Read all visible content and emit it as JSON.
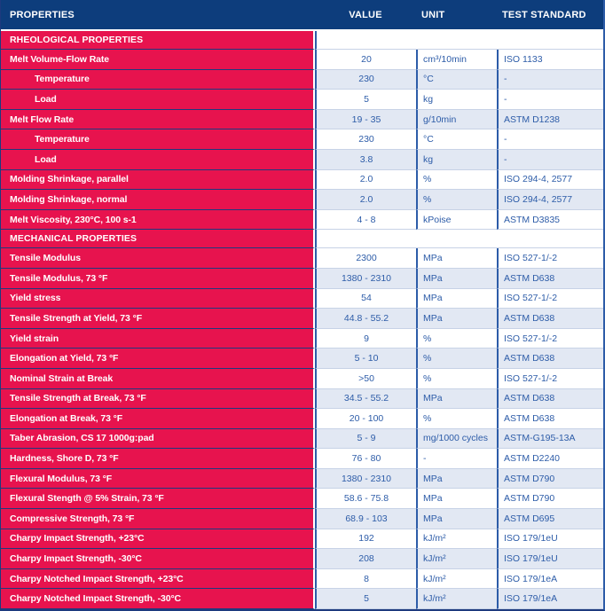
{
  "colors": {
    "header_background": "#0d3d7c",
    "section_background": "#e7134e",
    "alt_row_background": "#e2e8f3",
    "column_border": "#2d5ca8",
    "row_separator": "#c7d2e6",
    "dark_separator": "#1d3a7e",
    "value_text": "#2d5ca8"
  },
  "header": {
    "columns": [
      "PROPERTIES",
      "VALUE",
      "UNIT",
      "TEST STANDARD"
    ]
  },
  "sections": [
    {
      "title": "RHEOLOGICAL PROPERTIES",
      "rows": [
        {
          "property": "Melt Volume-Flow Rate",
          "indent": false,
          "value": "20",
          "unit": "cm³/10min",
          "standard": "ISO 1133"
        },
        {
          "property": "Temperature",
          "indent": true,
          "value": "230",
          "unit": "°C",
          "standard": "-"
        },
        {
          "property": "Load",
          "indent": true,
          "value": "5",
          "unit": "kg",
          "standard": "-"
        },
        {
          "property": "Melt Flow Rate",
          "indent": false,
          "value": "19 - 35",
          "unit": "g/10min",
          "standard": "ASTM D1238"
        },
        {
          "property": "Temperature",
          "indent": true,
          "value": "230",
          "unit": "°C",
          "standard": "-"
        },
        {
          "property": "Load",
          "indent": true,
          "value": "3.8",
          "unit": "kg",
          "standard": "-"
        },
        {
          "property": "Molding Shrinkage, parallel",
          "indent": false,
          "value": "2.0",
          "unit": "%",
          "standard": "ISO 294-4, 2577"
        },
        {
          "property": "Molding Shrinkage, normal",
          "indent": false,
          "value": "2.0",
          "unit": "%",
          "standard": "ISO 294-4, 2577"
        },
        {
          "property": "Melt Viscosity, 230°C, 100 s-1",
          "indent": false,
          "value": "4 - 8",
          "unit": "kPoise",
          "standard": "ASTM D3835"
        }
      ]
    },
    {
      "title": "MECHANICAL PROPERTIES",
      "rows": [
        {
          "property": "Tensile Modulus",
          "indent": false,
          "value": "2300",
          "unit": "MPa",
          "standard": "ISO 527-1/-2"
        },
        {
          "property": "Tensile Modulus, 73 °F",
          "indent": false,
          "value": "1380 - 2310",
          "unit": "MPa",
          "standard": "ASTM D638"
        },
        {
          "property": "Yield stress",
          "indent": false,
          "value": "54",
          "unit": "MPa",
          "standard": "ISO 527-1/-2"
        },
        {
          "property": "Tensile Strength at Yield, 73 °F",
          "indent": false,
          "value": "44.8 - 55.2",
          "unit": "MPa",
          "standard": "ASTM D638"
        },
        {
          "property": "Yield strain",
          "indent": false,
          "value": "9",
          "unit": "%",
          "standard": "ISO 527-1/-2"
        },
        {
          "property": "Elongation at Yield, 73 °F",
          "indent": false,
          "value": "5 - 10",
          "unit": "%",
          "standard": "ASTM D638"
        },
        {
          "property": "Nominal Strain at Break",
          "indent": false,
          "value": ">50",
          "unit": "%",
          "standard": "ISO 527-1/-2"
        },
        {
          "property": "Tensile Strength at Break, 73 °F",
          "indent": false,
          "value": "34.5 - 55.2",
          "unit": "MPa",
          "standard": "ASTM D638"
        },
        {
          "property": "Elongation at Break, 73 °F",
          "indent": false,
          "value": "20 - 100",
          "unit": "%",
          "standard": "ASTM D638"
        },
        {
          "property": "Taber Abrasion, CS 17 1000g:pad",
          "indent": false,
          "value": "5 - 9",
          "unit": "mg/1000 cycles",
          "standard": "ASTM-G195-13A"
        },
        {
          "property": "Hardness, Shore D, 73 °F",
          "indent": false,
          "value": "76 - 80",
          "unit": "-",
          "standard": "ASTM D2240"
        },
        {
          "property": "Flexural Modulus, 73 °F",
          "indent": false,
          "value": "1380 - 2310",
          "unit": "MPa",
          "standard": "ASTM D790"
        },
        {
          "property": "Flexural Stength @ 5% Strain, 73 °F",
          "indent": false,
          "value": "58.6 - 75.8",
          "unit": "MPa",
          "standard": "ASTM D790"
        },
        {
          "property": "Compressive Strength, 73 °F",
          "indent": false,
          "value": "68.9 - 103",
          "unit": "MPa",
          "standard": "ASTM D695"
        },
        {
          "property": "Charpy Impact Strength, +23°C",
          "indent": false,
          "value": "192",
          "unit": "kJ/m²",
          "standard": "ISO 179/1eU"
        },
        {
          "property": "Charpy Impact Strength, -30°C",
          "indent": false,
          "value": "208",
          "unit": "kJ/m²",
          "standard": "ISO 179/1eU"
        },
        {
          "property": "Charpy Notched Impact Strength, +23°C",
          "indent": false,
          "value": "8",
          "unit": "kJ/m²",
          "standard": "ISO 179/1eA"
        },
        {
          "property": "Charpy Notched Impact Strength, -30°C",
          "indent": false,
          "value": "5",
          "unit": "kJ/m²",
          "standard": "ISO 179/1eA"
        }
      ]
    }
  ]
}
